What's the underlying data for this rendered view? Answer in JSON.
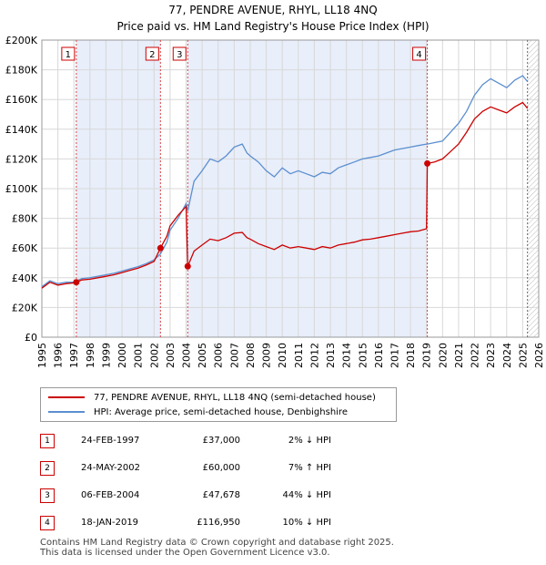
{
  "title": "77, PENDRE AVENUE, RHYL, LL18 4NQ",
  "subtitle": "Price paid vs. HM Land Registry's House Price Index (HPI)",
  "legend": {
    "property_label": "77, PENDRE AVENUE, RHYL, LL18 4NQ (semi-detached house)",
    "hpi_label": "HPI: Average price, semi-detached house, Denbighshire"
  },
  "colors": {
    "property": "#cc0000",
    "hpi": "#5b8fd0",
    "shade": "#e8eefa",
    "grid": "#d8d8d8"
  },
  "sales": [
    {
      "num": "1",
      "date": "24-FEB-1997",
      "price": "£37,000",
      "hpi": "2% ↓ HPI"
    },
    {
      "num": "2",
      "date": "24-MAY-2002",
      "price": "£60,000",
      "hpi": "7% ↑ HPI"
    },
    {
      "num": "3",
      "date": "06-FEB-2004",
      "price": "£47,678",
      "hpi": "44% ↓ HPI"
    },
    {
      "num": "4",
      "date": "18-JAN-2019",
      "price": "£116,950",
      "hpi": "10% ↓ HPI"
    }
  ],
  "footer": {
    "line1": "Contains HM Land Registry data © Crown copyright and database right 2025.",
    "line2": "This data is licensed under the Open Government Licence v3.0."
  },
  "chart_data": {
    "type": "line",
    "title": "77, PENDRE AVENUE, RHYL, LL18 4NQ",
    "subtitle": "Price paid vs. HM Land Registry's House Price Index (HPI)",
    "xlim": [
      1995,
      2026
    ],
    "ylim": [
      0,
      200000
    ],
    "x_ticks": [
      1995,
      1996,
      1997,
      1998,
      1999,
      2000,
      2001,
      2002,
      2003,
      2004,
      2005,
      2006,
      2007,
      2008,
      2009,
      2010,
      2011,
      2012,
      2013,
      2014,
      2015,
      2016,
      2017,
      2018,
      2019,
      2020,
      2021,
      2022,
      2023,
      2024,
      2025,
      2026
    ],
    "y_ticks": [
      0,
      20000,
      40000,
      60000,
      80000,
      100000,
      120000,
      140000,
      160000,
      180000,
      200000
    ],
    "y_tick_labels": [
      "£0",
      "£20K",
      "£40K",
      "£60K",
      "£80K",
      "£100K",
      "£120K",
      "£140K",
      "£160K",
      "£180K",
      "£200K"
    ],
    "grid": true,
    "series": [
      {
        "name": "HPI: Average price, semi-detached house, Denbighshire",
        "x": [
          1995.0,
          1995.5,
          1996.0,
          1996.5,
          1997.0,
          1997.15,
          1997.5,
          1998.0,
          1998.5,
          1999.0,
          1999.5,
          2000.0,
          2000.5,
          2001.0,
          2001.5,
          2002.0,
          2002.4,
          2002.8,
          2003.0,
          2003.5,
          2004.0,
          2004.1,
          2004.5,
          2005.0,
          2005.5,
          2006.0,
          2006.5,
          2007.0,
          2007.5,
          2007.8,
          2008.0,
          2008.5,
          2009.0,
          2009.5,
          2010.0,
          2010.5,
          2011.0,
          2011.5,
          2012.0,
          2012.5,
          2013.0,
          2013.5,
          2014.0,
          2014.5,
          2015.0,
          2015.5,
          2016.0,
          2016.5,
          2017.0,
          2017.5,
          2018.0,
          2018.5,
          2019.0,
          2019.05,
          2019.5,
          2020.0,
          2020.5,
          2021.0,
          2021.5,
          2022.0,
          2022.5,
          2023.0,
          2023.5,
          2024.0,
          2024.5,
          2025.0,
          2025.3
        ],
        "y": [
          34000,
          38000,
          36000,
          37000,
          37000,
          37700,
          39500,
          40000,
          41000,
          42000,
          43000,
          44500,
          46000,
          47500,
          49500,
          52000,
          56000,
          64000,
          72000,
          80000,
          90000,
          85000,
          105000,
          112000,
          120000,
          118000,
          122000,
          128000,
          130000,
          124000,
          122000,
          118000,
          112000,
          108000,
          114000,
          110000,
          112000,
          110000,
          108000,
          111000,
          110000,
          114000,
          116000,
          118000,
          120000,
          121000,
          122000,
          124000,
          126000,
          127000,
          128000,
          129000,
          130000,
          130000,
          131000,
          132000,
          138000,
          144000,
          152000,
          163000,
          170000,
          174000,
          171000,
          168000,
          173000,
          176000,
          172000
        ]
      },
      {
        "name": "77, PENDRE AVENUE, RHYL, LL18 4NQ (semi-detached house)",
        "x": [
          1995.0,
          1995.5,
          1996.0,
          1996.5,
          1997.0,
          1997.15,
          1997.5,
          1998.0,
          1998.5,
          1999.0,
          1999.5,
          2000.0,
          2000.5,
          2001.0,
          2001.5,
          2002.0,
          2002.4,
          2002.8,
          2003.0,
          2003.5,
          2004.0,
          2004.1,
          2004.5,
          2005.0,
          2005.5,
          2006.0,
          2006.5,
          2007.0,
          2007.5,
          2007.8,
          2008.0,
          2008.5,
          2009.0,
          2009.5,
          2010.0,
          2010.5,
          2011.0,
          2011.5,
          2012.0,
          2012.5,
          2013.0,
          2013.5,
          2014.0,
          2014.5,
          2015.0,
          2015.5,
          2016.0,
          2016.5,
          2017.0,
          2017.5,
          2018.0,
          2018.5,
          2019.0,
          2019.05,
          2019.5,
          2020.0,
          2020.5,
          2021.0,
          2021.5,
          2022.0,
          2022.5,
          2023.0,
          2023.5,
          2024.0,
          2024.5,
          2025.0,
          2025.3
        ],
        "y": [
          33000,
          37000,
          35000,
          36000,
          36500,
          37000,
          38500,
          39000,
          40000,
          41000,
          42000,
          43500,
          45000,
          46500,
          48500,
          51000,
          60000,
          68000,
          75000,
          82000,
          88000,
          47678,
          58000,
          62000,
          66000,
          65000,
          67000,
          70000,
          70500,
          67000,
          66000,
          63000,
          61000,
          59000,
          62000,
          60000,
          61000,
          60000,
          59000,
          61000,
          60000,
          62000,
          63000,
          64000,
          65500,
          66000,
          67000,
          68000,
          69000,
          70000,
          71000,
          71500,
          73000,
          116950,
          118000,
          120000,
          125000,
          130000,
          138000,
          147000,
          152000,
          155000,
          153000,
          151000,
          155000,
          158000,
          154000
        ]
      }
    ],
    "sale_markers": [
      {
        "label": "1",
        "x": 1997.15,
        "y": 37000
      },
      {
        "label": "2",
        "x": 2002.4,
        "y": 60000
      },
      {
        "label": "3",
        "x": 2004.1,
        "y": 47678
      },
      {
        "label": "4",
        "x": 2019.05,
        "y": 116950
      }
    ],
    "shaded_spans": [
      [
        1997.15,
        2002.4
      ],
      [
        2004.1,
        2019.05
      ]
    ],
    "hatched_span": [
      2025.3,
      2026
    ]
  }
}
